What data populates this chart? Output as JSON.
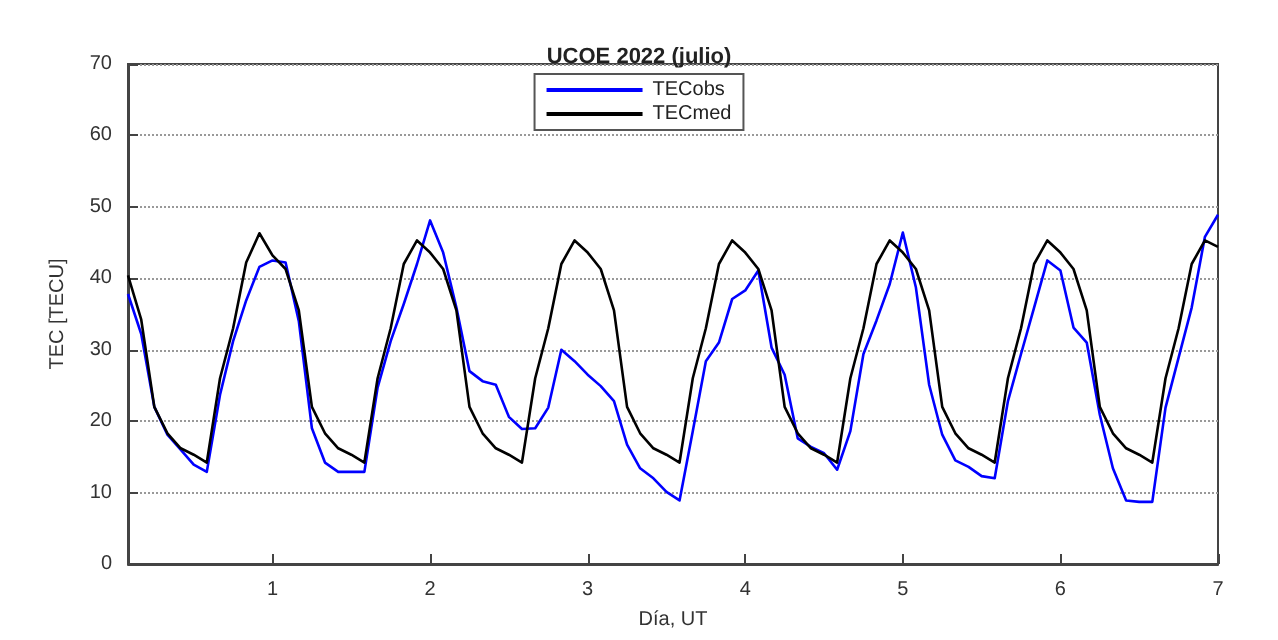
{
  "chart_data": {
    "type": "line",
    "title": "UCOE 2022 (julio)",
    "xlabel": "Día, UT",
    "ylabel": "TEC [TECU]",
    "x": [
      0.083,
      0.167,
      0.25,
      0.333,
      0.417,
      0.5,
      0.583,
      0.667,
      0.75,
      0.833,
      0.917,
      1,
      1.083,
      1.167,
      1.25,
      1.333,
      1.417,
      1.5,
      1.583,
      1.667,
      1.75,
      1.833,
      1.917,
      2,
      2.083,
      2.167,
      2.25,
      2.333,
      2.417,
      2.5,
      2.583,
      2.667,
      2.75,
      2.833,
      2.917,
      3,
      3.083,
      3.167,
      3.25,
      3.333,
      3.417,
      3.5,
      3.583,
      3.667,
      3.75,
      3.833,
      3.917,
      4,
      4.083,
      4.167,
      4.25,
      4.333,
      4.417,
      4.5,
      4.583,
      4.667,
      4.75,
      4.833,
      4.917,
      5,
      5.083,
      5.167,
      5.25,
      5.333,
      5.417,
      5.5,
      5.583,
      5.667,
      5.75,
      5.833,
      5.917,
      6,
      6.083,
      6.167,
      6.25,
      6.333,
      6.417,
      6.5,
      6.583,
      6.667,
      6.75,
      6.833,
      6.917,
      7
    ],
    "series": [
      {
        "name": "TECobs",
        "color": "#0000ff",
        "values": [
          37.8,
          32.2,
          22,
          18.1,
          16,
          13.9,
          12.9,
          23.7,
          31.2,
          36.9,
          41.6,
          42.5,
          42.2,
          34,
          19,
          14.2,
          12.9,
          12.9,
          12.9,
          24.7,
          31.2,
          36.4,
          42,
          48.1,
          43.6,
          35.9,
          27,
          25.6,
          25.1,
          20.6,
          18.9,
          19,
          21.9,
          30,
          28.4,
          26.5,
          24.9,
          22.8,
          16.7,
          13.4,
          12,
          10.1,
          8.9,
          18.6,
          28.4,
          31,
          37.1,
          38.3,
          41.1,
          30.3,
          26.5,
          17.6,
          16.4,
          15.5,
          13.2,
          18.6,
          29.4,
          34.1,
          39.2,
          46.4,
          38.7,
          25.1,
          18.1,
          14.5,
          13.6,
          12.3,
          12,
          22.8,
          29.4,
          35.9,
          42.5,
          41.1,
          33.1,
          31,
          20.9,
          13.4,
          8.9,
          8.7,
          8.7,
          21.9,
          28.9,
          35.9,
          45.8,
          48.9
        ]
      },
      {
        "name": "TECmed",
        "color": "#000000",
        "values": [
          40.4,
          34.2,
          22,
          18.3,
          16.2,
          15.3,
          14.2,
          26,
          33,
          42.2,
          46.3,
          43.2,
          41.3,
          35.5,
          22,
          18.3,
          16.2,
          15.3,
          14.2,
          26,
          33,
          42,
          45.3,
          43.6,
          41.3,
          35.5,
          22,
          18.3,
          16.2,
          15.3,
          14.2,
          26,
          33,
          42,
          45.3,
          43.6,
          41.3,
          35.5,
          22,
          18.3,
          16.2,
          15.3,
          14.2,
          26,
          33,
          42,
          45.3,
          43.6,
          41.3,
          35.5,
          22,
          18.3,
          16.2,
          15.3,
          14.2,
          26,
          33,
          42,
          45.3,
          43.6,
          41.3,
          35.5,
          22,
          18.3,
          16.2,
          15.3,
          14.2,
          26,
          33,
          42,
          45.3,
          43.6,
          41.3,
          35.5,
          22,
          18.3,
          16.2,
          15.3,
          14.2,
          26,
          33,
          42,
          45.3,
          44.4
        ]
      }
    ],
    "xlim": [
      0.083,
      7
    ],
    "xticks": [
      1,
      2,
      3,
      4,
      5,
      6,
      7
    ],
    "ylim": [
      0,
      70
    ],
    "yticks": [
      0,
      10,
      20,
      30,
      40,
      50,
      60,
      70
    ],
    "grid": "y",
    "legend": "top",
    "marker": "none",
    "line_style": "solid"
  }
}
